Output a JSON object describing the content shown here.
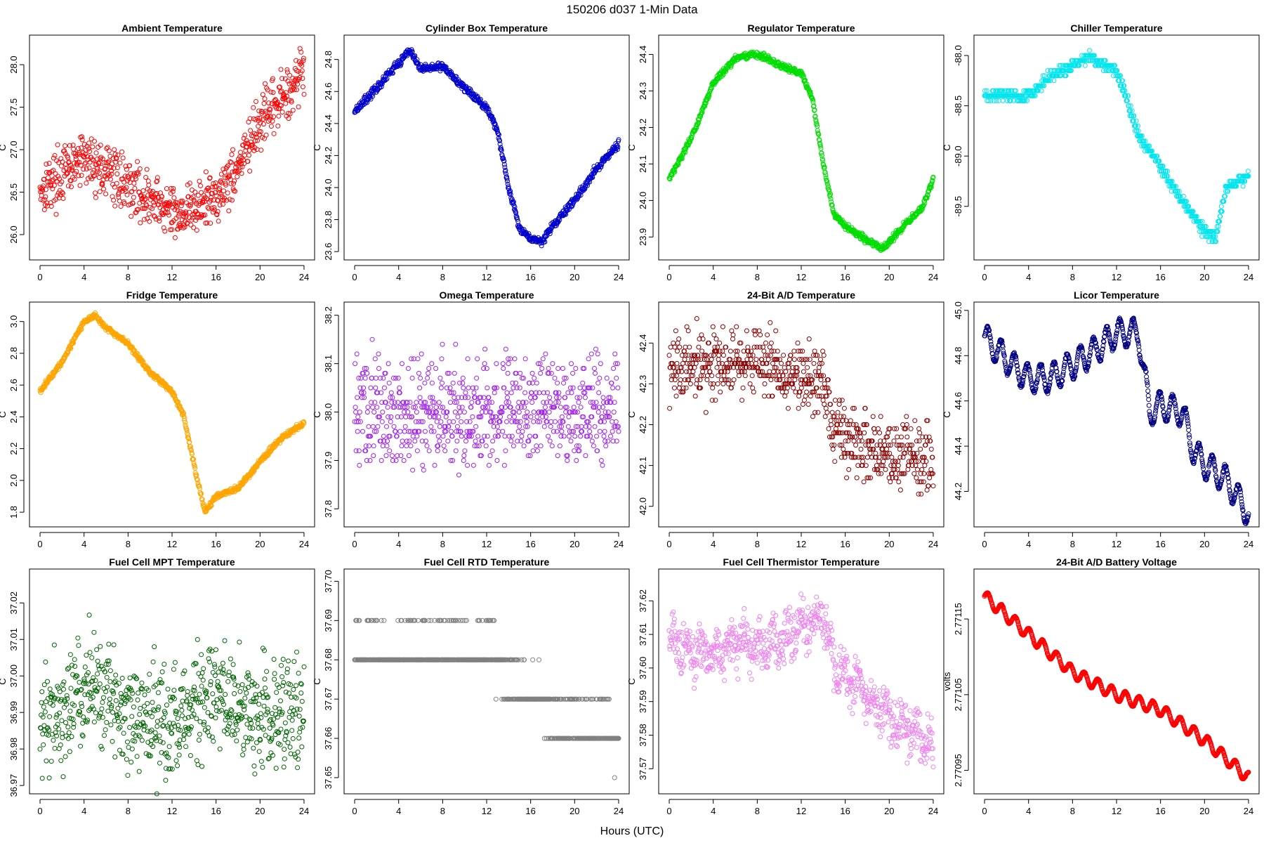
{
  "page": {
    "suptitle": "150206    d037    1-Min Data",
    "xlabel": "Hours (UTC)"
  },
  "chart_data": [
    {
      "type": "scatter",
      "title": "Ambient Temperature",
      "ylabel": "C",
      "color": "#ff0000",
      "xlim": [
        0,
        24
      ],
      "ylim": [
        25.8,
        28.25
      ],
      "xticks": [
        0,
        4,
        8,
        12,
        16,
        20,
        24
      ],
      "yticks": [
        26.0,
        26.5,
        27.0,
        27.5,
        28.0
      ],
      "ytick_labels": [
        "26.0",
        "26.5",
        "27.0",
        "27.5",
        "28.0"
      ],
      "trend": [
        [
          0,
          26.55
        ],
        [
          2,
          26.7
        ],
        [
          4,
          26.9
        ],
        [
          6,
          26.75
        ],
        [
          8,
          26.6
        ],
        [
          10,
          26.4
        ],
        [
          12,
          26.25
        ],
        [
          14,
          26.3
        ],
        [
          16,
          26.45
        ],
        [
          18,
          26.8
        ],
        [
          20,
          27.3
        ],
        [
          22,
          27.6
        ],
        [
          24,
          27.95
        ]
      ],
      "noise": 0.22
    },
    {
      "type": "scatter",
      "title": "Cylinder Box Temperature",
      "ylabel": "C",
      "color": "#0000cc",
      "xlim": [
        0,
        24
      ],
      "ylim": [
        23.6,
        24.9
      ],
      "xticks": [
        0,
        4,
        8,
        12,
        16,
        20,
        24
      ],
      "yticks": [
        23.6,
        23.8,
        24.0,
        24.2,
        24.4,
        24.6,
        24.8
      ],
      "ytick_labels": [
        "23.6",
        "23.8",
        "24.0",
        "24.2",
        "24.4",
        "24.6",
        "24.8"
      ],
      "trend": [
        [
          0,
          24.48
        ],
        [
          2,
          24.62
        ],
        [
          4,
          24.78
        ],
        [
          5,
          24.86
        ],
        [
          6,
          24.74
        ],
        [
          8,
          24.76
        ],
        [
          10,
          24.62
        ],
        [
          12,
          24.5
        ],
        [
          13,
          24.35
        ],
        [
          14,
          24.0
        ],
        [
          15,
          23.75
        ],
        [
          16,
          23.68
        ],
        [
          17,
          23.66
        ],
        [
          18,
          23.76
        ],
        [
          20,
          23.92
        ],
        [
          22,
          24.12
        ],
        [
          24,
          24.28
        ]
      ],
      "noise": 0.018
    },
    {
      "type": "scatter",
      "title": "Regulator Temperature",
      "ylabel": "C",
      "color": "#00dd00",
      "xlim": [
        0,
        24
      ],
      "ylim": [
        23.86,
        24.43
      ],
      "xticks": [
        0,
        4,
        8,
        12,
        16,
        20,
        24
      ],
      "yticks": [
        23.9,
        24.0,
        24.1,
        24.2,
        24.3,
        24.4
      ],
      "ytick_labels": [
        "23.9",
        "24.0",
        "24.1",
        "24.2",
        "24.3",
        "24.4"
      ],
      "trend": [
        [
          0,
          24.06
        ],
        [
          2,
          24.17
        ],
        [
          4,
          24.32
        ],
        [
          6,
          24.39
        ],
        [
          8,
          24.4
        ],
        [
          9,
          24.39
        ],
        [
          10,
          24.37
        ],
        [
          12,
          24.35
        ],
        [
          13,
          24.28
        ],
        [
          14,
          24.1
        ],
        [
          15,
          23.96
        ],
        [
          16,
          23.93
        ],
        [
          18,
          23.89
        ],
        [
          19.5,
          23.87
        ],
        [
          21,
          23.92
        ],
        [
          23,
          23.98
        ],
        [
          24,
          24.06
        ]
      ],
      "noise": 0.006
    },
    {
      "type": "scatter",
      "title": "Chiller Temperature",
      "ylabel": "C",
      "color": "#00e5ee",
      "xlim": [
        0,
        24
      ],
      "ylim": [
        -89.95,
        -87.88
      ],
      "xticks": [
        0,
        4,
        8,
        12,
        16,
        20,
        24
      ],
      "yticks": [
        -89.5,
        -89.0,
        -88.5,
        -88.0
      ],
      "ytick_labels": [
        "-89.5",
        "-89.0",
        "-88.5",
        "-88.0"
      ],
      "trend": [
        [
          0,
          -88.4
        ],
        [
          4,
          -88.4
        ],
        [
          5,
          -88.3
        ],
        [
          6,
          -88.2
        ],
        [
          8,
          -88.1
        ],
        [
          9.5,
          -88.0
        ],
        [
          10,
          -88.05
        ],
        [
          12,
          -88.15
        ],
        [
          13,
          -88.45
        ],
        [
          14,
          -88.8
        ],
        [
          16,
          -89.1
        ],
        [
          18,
          -89.45
        ],
        [
          20,
          -89.75
        ],
        [
          21,
          -89.8
        ],
        [
          22,
          -89.3
        ],
        [
          24,
          -89.2
        ]
      ],
      "noise": 0.04,
      "quantum": 0.05
    },
    {
      "type": "scatter",
      "title": "Fridge Temperature",
      "ylabel": "C",
      "color": "#ffa500",
      "xlim": [
        0,
        24
      ],
      "ylim": [
        1.76,
        3.07
      ],
      "xticks": [
        0,
        4,
        8,
        12,
        16,
        20,
        24
      ],
      "yticks": [
        1.8,
        2.0,
        2.2,
        2.4,
        2.6,
        2.8,
        3.0
      ],
      "ytick_labels": [
        "1.8",
        "2.0",
        "2.2",
        "2.4",
        "2.6",
        "2.8",
        "3.0"
      ],
      "trend": [
        [
          0,
          2.56
        ],
        [
          2,
          2.75
        ],
        [
          4,
          3.0
        ],
        [
          5,
          3.04
        ],
        [
          6,
          2.96
        ],
        [
          8,
          2.86
        ],
        [
          10,
          2.68
        ],
        [
          12,
          2.56
        ],
        [
          13,
          2.42
        ],
        [
          14,
          2.1
        ],
        [
          15,
          1.8
        ],
        [
          16,
          1.9
        ],
        [
          18,
          1.95
        ],
        [
          20,
          2.12
        ],
        [
          22,
          2.27
        ],
        [
          24,
          2.36
        ]
      ],
      "noise": 0.012
    },
    {
      "type": "scatter",
      "title": "Omega Temperature",
      "ylabel": "C",
      "color": "#a020f0",
      "xlim": [
        0,
        24
      ],
      "ylim": [
        37.78,
        38.21
      ],
      "xticks": [
        0,
        4,
        8,
        12,
        16,
        20,
        24
      ],
      "yticks": [
        37.8,
        37.9,
        38.0,
        38.1,
        38.2
      ],
      "ytick_labels": [
        "37.8",
        "37.9",
        "38.0",
        "38.1",
        "38.2"
      ],
      "trend": [
        [
          0,
          38.0
        ],
        [
          24,
          38.0
        ]
      ],
      "noise": 0.08,
      "quantum": 0.01
    },
    {
      "type": "scatter",
      "title": "24-Bit A/D Temperature",
      "ylabel": "C",
      "color": "#8b0000",
      "xlim": [
        0,
        24
      ],
      "ylim": [
        41.97,
        42.48
      ],
      "xticks": [
        0,
        4,
        8,
        12,
        16,
        20,
        24
      ],
      "yticks": [
        42.0,
        42.1,
        42.2,
        42.3,
        42.4
      ],
      "ytick_labels": [
        "42.0",
        "42.1",
        "42.2",
        "42.3",
        "42.4"
      ],
      "trend": [
        [
          0,
          42.34
        ],
        [
          8,
          42.35
        ],
        [
          12,
          42.32
        ],
        [
          14,
          42.3
        ],
        [
          15,
          42.18
        ],
        [
          18,
          42.15
        ],
        [
          22,
          42.12
        ],
        [
          24,
          42.1
        ]
      ],
      "noise": 0.06,
      "quantum": 0.01
    },
    {
      "type": "scatter",
      "title": "Licor Temperature",
      "ylabel": "C",
      "color": "#000080",
      "xlim": [
        0,
        24
      ],
      "ylim": [
        44.08,
        45.0
      ],
      "xticks": [
        0,
        4,
        8,
        12,
        16,
        20,
        24
      ],
      "yticks": [
        44.2,
        44.4,
        44.6,
        44.8,
        45.0
      ],
      "ytick_labels": [
        "44.2",
        "44.4",
        "44.6",
        "44.8",
        "45.0"
      ],
      "trend": [
        [
          0,
          44.88
        ],
        [
          2,
          44.78
        ],
        [
          4,
          44.7
        ],
        [
          6,
          44.7
        ],
        [
          8,
          44.76
        ],
        [
          10,
          44.82
        ],
        [
          12,
          44.9
        ],
        [
          14,
          44.9
        ],
        [
          15,
          44.55
        ],
        [
          16,
          44.58
        ],
        [
          18,
          44.55
        ],
        [
          19,
          44.38
        ],
        [
          20,
          44.32
        ],
        [
          22,
          44.25
        ],
        [
          24,
          44.1
        ]
      ],
      "noise": 0.006,
      "wave": 0.06,
      "period": 1.2
    },
    {
      "type": "scatter",
      "title": "Fuel Cell MPT Temperature",
      "ylabel": "C",
      "color": "#006400",
      "xlim": [
        0,
        24
      ],
      "ylim": [
        36.97,
        37.027
      ],
      "xticks": [
        0,
        4,
        8,
        12,
        16,
        20,
        24
      ],
      "yticks": [
        36.97,
        36.98,
        36.99,
        37.0,
        37.01,
        37.02
      ],
      "ytick_labels": [
        "36.97",
        "36.98",
        "36.99",
        "37.00",
        "37.01",
        "37.02"
      ],
      "trend": [
        [
          0,
          36.988
        ],
        [
          5,
          36.997
        ],
        [
          8,
          36.99
        ],
        [
          12,
          36.986
        ],
        [
          16,
          36.994
        ],
        [
          20,
          36.99
        ],
        [
          24,
          36.99
        ]
      ],
      "noise": 0.011
    },
    {
      "type": "scatter",
      "title": "Fuel Cell RTD Temperature",
      "ylabel": "C",
      "color": "#808080",
      "xlim": [
        0,
        24
      ],
      "ylim": [
        37.648,
        37.701
      ],
      "xticks": [
        0,
        4,
        8,
        12,
        16,
        20,
        24
      ],
      "yticks": [
        37.65,
        37.66,
        37.67,
        37.68,
        37.69,
        37.7
      ],
      "ytick_labels": [
        "37.65",
        "37.66",
        "37.67",
        "37.68",
        "37.69",
        "37.70"
      ],
      "trend": [
        [
          0,
          37.682
        ],
        [
          12,
          37.683
        ],
        [
          14,
          37.675
        ],
        [
          17,
          37.67
        ],
        [
          18,
          37.665
        ],
        [
          24,
          37.662
        ]
      ],
      "noise": 0.004,
      "quantum": 0.01
    },
    {
      "type": "scatter",
      "title": "Fuel Cell Thermistor Temperature",
      "ylabel": "C",
      "color": "#ee82ee",
      "xlim": [
        0,
        24
      ],
      "ylim": [
        37.565,
        37.627
      ],
      "xticks": [
        0,
        4,
        8,
        12,
        16,
        20,
        24
      ],
      "yticks": [
        37.57,
        37.58,
        37.59,
        37.6,
        37.61,
        37.62
      ],
      "ytick_labels": [
        "37.57",
        "37.58",
        "37.59",
        "37.60",
        "37.61",
        "37.62"
      ],
      "trend": [
        [
          0,
          37.607
        ],
        [
          4,
          37.604
        ],
        [
          6,
          37.608
        ],
        [
          8,
          37.606
        ],
        [
          10,
          37.608
        ],
        [
          12,
          37.612
        ],
        [
          14,
          37.615
        ],
        [
          15,
          37.6
        ],
        [
          16,
          37.598
        ],
        [
          18,
          37.592
        ],
        [
          20,
          37.585
        ],
        [
          22,
          37.582
        ],
        [
          24,
          37.575
        ]
      ],
      "noise": 0.005,
      "wave": 0.003,
      "period": 1.3
    },
    {
      "type": "scatter",
      "title": "24-Bit A/D Battery Voltage",
      "ylabel": "volts",
      "color": "#ff0000",
      "xlim": [
        0,
        24
      ],
      "ylim": [
        2.77093,
        2.771205
      ],
      "xticks": [
        0,
        4,
        8,
        12,
        16,
        20,
        24
      ],
      "yticks": [
        2.77095,
        2.77105,
        2.77115
      ],
      "ytick_labels": [
        "2.77095",
        "2.77105",
        "2.77115"
      ],
      "trend": [
        [
          0,
          2.77118
        ],
        [
          4,
          2.77113
        ],
        [
          8,
          2.77108
        ],
        [
          12,
          2.77105
        ],
        [
          16,
          2.77103
        ],
        [
          20,
          2.77099
        ],
        [
          24,
          2.77094
        ]
      ],
      "noise": 5e-07,
      "wave": 8e-06,
      "period": 1.25
    }
  ]
}
